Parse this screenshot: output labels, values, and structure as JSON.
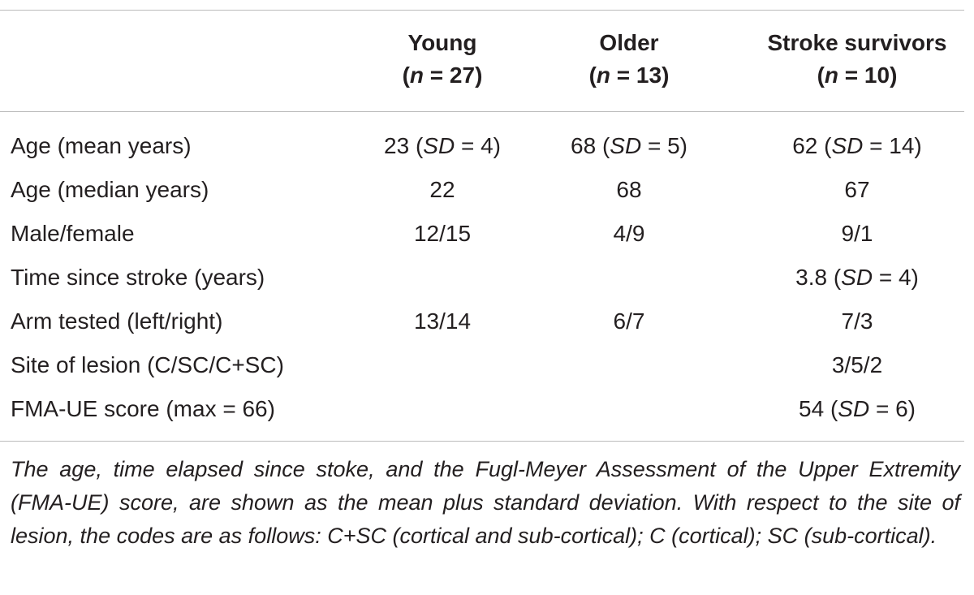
{
  "table": {
    "columns": [
      {
        "name": "Young",
        "n_label": "n",
        "n_value": " = 27)"
      },
      {
        "name": "Older",
        "n_label": "n",
        "n_value": " = 13)"
      },
      {
        "name": "Stroke survivors",
        "n_label": "n",
        "n_value": " = 10)"
      }
    ],
    "rows": [
      {
        "label": "Age (mean years)",
        "young": {
          "pre": "23 (",
          "sd": "SD",
          "post": " = 4)"
        },
        "older": {
          "pre": "68 (",
          "sd": "SD",
          "post": " = 5)"
        },
        "stroke": {
          "pre": "62 (",
          "sd": "SD",
          "post": " = 14)"
        }
      },
      {
        "label": "Age (median years)",
        "young": {
          "pre": "22",
          "sd": "",
          "post": ""
        },
        "older": {
          "pre": "68",
          "sd": "",
          "post": ""
        },
        "stroke": {
          "pre": "67",
          "sd": "",
          "post": ""
        }
      },
      {
        "label": "Male/female",
        "young": {
          "pre": "12/15",
          "sd": "",
          "post": ""
        },
        "older": {
          "pre": "4/9",
          "sd": "",
          "post": ""
        },
        "stroke": {
          "pre": "9/1",
          "sd": "",
          "post": ""
        }
      },
      {
        "label": "Time since stroke (years)",
        "young": {
          "pre": "",
          "sd": "",
          "post": ""
        },
        "older": {
          "pre": "",
          "sd": "",
          "post": ""
        },
        "stroke": {
          "pre": "3.8 (",
          "sd": "SD",
          "post": " = 4)"
        }
      },
      {
        "label": "Arm tested (left/right)",
        "young": {
          "pre": "13/14",
          "sd": "",
          "post": ""
        },
        "older": {
          "pre": "6/7",
          "sd": "",
          "post": ""
        },
        "stroke": {
          "pre": "7/3",
          "sd": "",
          "post": ""
        }
      },
      {
        "label": "Site of lesion (C/SC/C+SC)",
        "young": {
          "pre": "",
          "sd": "",
          "post": ""
        },
        "older": {
          "pre": "",
          "sd": "",
          "post": ""
        },
        "stroke": {
          "pre": "3/5/2",
          "sd": "",
          "post": ""
        }
      },
      {
        "label": "FMA-UE score (max = 66)",
        "young": {
          "pre": "",
          "sd": "",
          "post": ""
        },
        "older": {
          "pre": "",
          "sd": "",
          "post": ""
        },
        "stroke": {
          "pre": "54 (",
          "sd": "SD",
          "post": " = 6)"
        }
      }
    ],
    "footnote": "The age, time elapsed since stoke, and the Fugl-Meyer Assessment of the Upper Extremity (FMA-UE) score, are shown as the mean plus standard deviation. With respect to the site of lesion, the codes are as follows: C+SC (cortical and sub-cortical); C (cortical); SC (sub-cortical)."
  }
}
